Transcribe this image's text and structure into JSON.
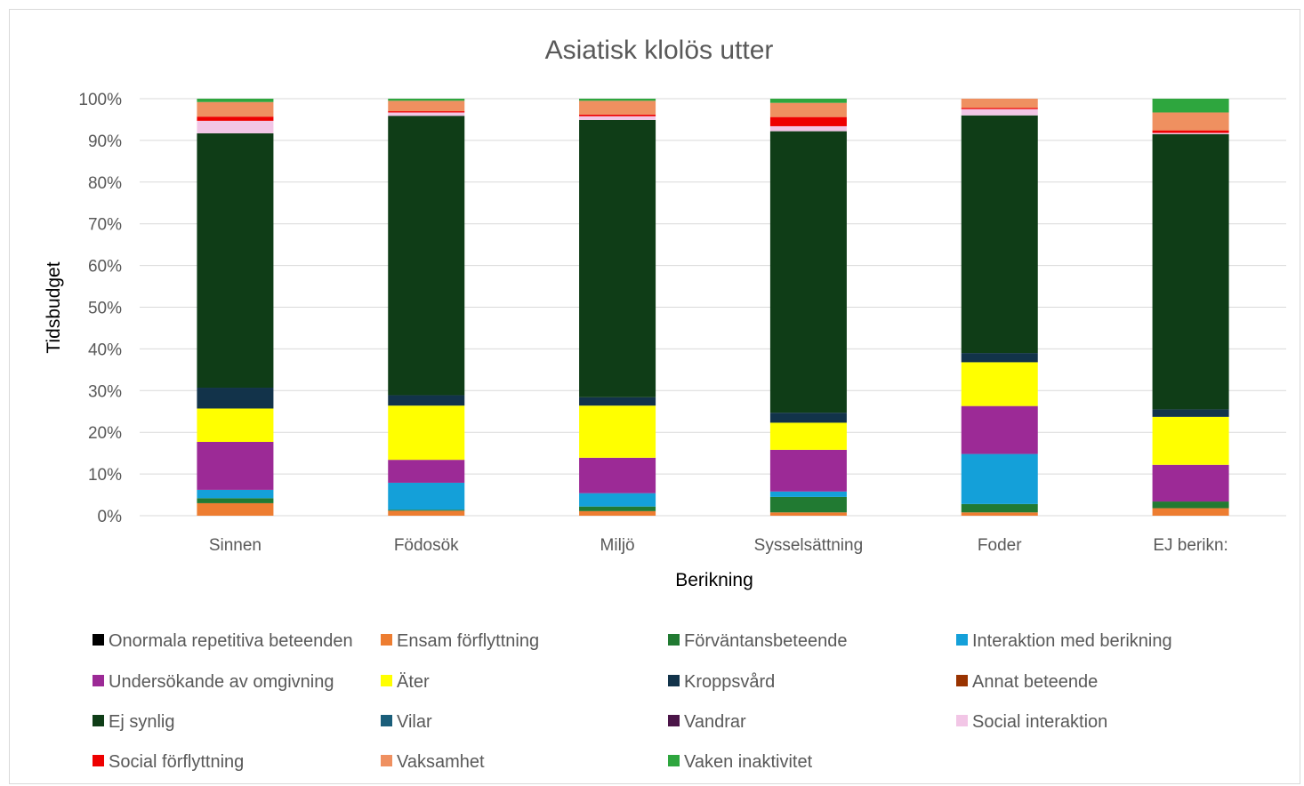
{
  "chart_data": {
    "type": "bar",
    "stacked": "percent",
    "title": "Asiatisk klolös utter",
    "xlabel": "Berikning",
    "ylabel": "Tidsbudget",
    "ylim": [
      0,
      100
    ],
    "yticks": [
      "0%",
      "10%",
      "20%",
      "30%",
      "40%",
      "50%",
      "60%",
      "70%",
      "80%",
      "90%",
      "100%"
    ],
    "categories": [
      "Sinnen",
      "Födosök",
      "Miljö",
      "Sysselsättning",
      "Foder",
      "EJ berikn:"
    ],
    "grid": true,
    "legend_position": "bottom",
    "series": [
      {
        "name": "Onormala repetitiva beteenden",
        "color": "#000000",
        "values": [
          0,
          0,
          0,
          0,
          0,
          0
        ]
      },
      {
        "name": "Ensam förflyttning",
        "color": "#ed7d31",
        "values": [
          3.0,
          1.2,
          1.1,
          0.8,
          0.8,
          1.8
        ]
      },
      {
        "name": "Förväntansbeteende",
        "color": "#217a32",
        "values": [
          1.2,
          0.2,
          1.1,
          3.7,
          2.0,
          1.6
        ]
      },
      {
        "name": "Interaktion med berikning",
        "color": "#14a0d9",
        "values": [
          2.0,
          6.5,
          3.2,
          1.3,
          12.0,
          0
        ]
      },
      {
        "name": "Undersökande av omgivning",
        "color": "#9c2a96",
        "values": [
          11.5,
          5.5,
          8.5,
          10.0,
          11.5,
          8.8
        ]
      },
      {
        "name": "Äter",
        "color": "#ffff00",
        "values": [
          8.0,
          13.0,
          12.5,
          6.5,
          10.5,
          11.5
        ]
      },
      {
        "name": "Kroppsvård",
        "color": "#12334a",
        "values": [
          5.0,
          2.5,
          2.0,
          2.4,
          2.2,
          1.8
        ]
      },
      {
        "name": "Annat beteende",
        "color": "#993300",
        "values": [
          0,
          0,
          0,
          0,
          0,
          0
        ]
      },
      {
        "name": "Ej synlig",
        "color": "#0f3d17",
        "values": [
          61.0,
          67.0,
          66.5,
          67.5,
          57.0,
          66.0
        ]
      },
      {
        "name": "Vilar",
        "color": "#1a5e7a",
        "values": [
          0,
          0,
          0,
          0,
          0,
          0
        ]
      },
      {
        "name": "Vandrar",
        "color": "#4b1548",
        "values": [
          0,
          0,
          0,
          0,
          0,
          0
        ]
      },
      {
        "name": "Social interaktion",
        "color": "#f2c6e6",
        "values": [
          3.0,
          0.8,
          0.9,
          1.2,
          1.5,
          0.3
        ]
      },
      {
        "name": "Social förflyttning",
        "color": "#ee0000",
        "values": [
          1.0,
          0.3,
          0.4,
          2.2,
          0.3,
          0.6
        ]
      },
      {
        "name": "Vaksamhet",
        "color": "#ef9060",
        "values": [
          3.5,
          2.5,
          3.3,
          3.4,
          2.2,
          4.3
        ]
      },
      {
        "name": "Vaken inaktivitet",
        "color": "#2ea63e",
        "values": [
          0.8,
          0.5,
          0.5,
          1.0,
          0,
          3.3
        ]
      }
    ]
  }
}
